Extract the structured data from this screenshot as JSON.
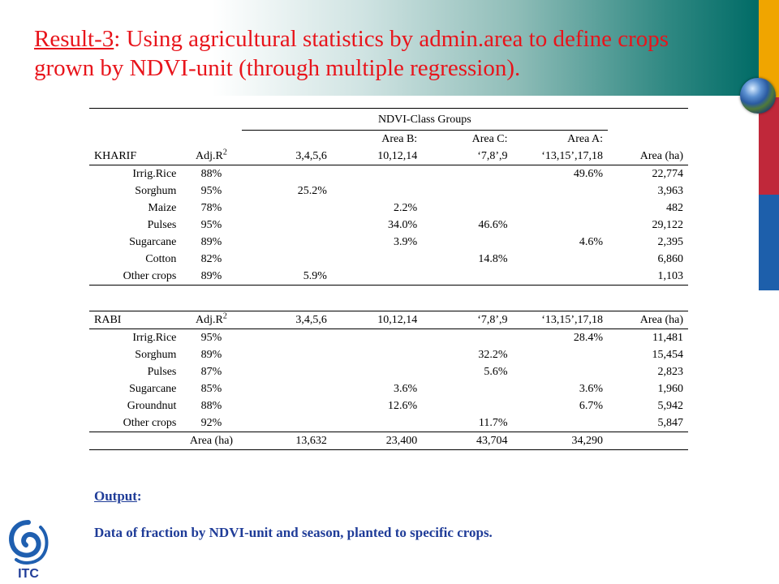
{
  "slide": {
    "title_prefix": "Result-3",
    "title_rest": ": Using agricultural statistics by admin.area to define crops grown by NDVI-unit (through multiple regression).",
    "colors": {
      "title": "#e8141b",
      "output_text": "#1f3c98",
      "accent_orange": "#f0a500",
      "accent_red": "#c0283a",
      "accent_blue": "#1d5fab",
      "header_teal": "#006b66"
    }
  },
  "table": {
    "group_header": "NDVI-Class Groups",
    "area_labels": [
      "Area B:",
      "Area C:",
      "Area A:"
    ],
    "kharif": {
      "season": "KHARIF",
      "adj_label": "Adj.R",
      "adj_sup": "2",
      "columns": [
        "3,4,5,6",
        "10,12,14",
        "‘7,8’,9",
        "‘13,15’,17,18",
        "Area (ha)"
      ],
      "rows": [
        {
          "crop": "Irrig.Rice",
          "adj": "88%",
          "v1": "",
          "v2": "",
          "v3": "",
          "v4": "49.6%",
          "area": "22,774"
        },
        {
          "crop": "Sorghum",
          "adj": "95%",
          "v1": "25.2%",
          "v2": "",
          "v3": "",
          "v4": "",
          "area": "3,963"
        },
        {
          "crop": "Maize",
          "adj": "78%",
          "v1": "",
          "v2": "2.2%",
          "v3": "",
          "v4": "",
          "area": "482"
        },
        {
          "crop": "Pulses",
          "adj": "95%",
          "v1": "",
          "v2": "34.0%",
          "v3": "46.6%",
          "v4": "",
          "area": "29,122"
        },
        {
          "crop": "Sugarcane",
          "adj": "89%",
          "v1": "",
          "v2": "3.9%",
          "v3": "",
          "v4": "4.6%",
          "area": "2,395"
        },
        {
          "crop": "Cotton",
          "adj": "82%",
          "v1": "",
          "v2": "",
          "v3": "14.8%",
          "v4": "",
          "area": "6,860"
        },
        {
          "crop": "Other crops",
          "adj": "89%",
          "v1": "5.9%",
          "v2": "",
          "v3": "",
          "v4": "",
          "area": "1,103"
        }
      ]
    },
    "rabi": {
      "season": "RABI",
      "adj_label": "Adj.R",
      "adj_sup": "2",
      "columns": [
        "3,4,5,6",
        "10,12,14",
        "‘7,8’,9",
        "‘13,15’,17,18",
        "Area (ha)"
      ],
      "rows": [
        {
          "crop": "Irrig.Rice",
          "adj": "95%",
          "v1": "",
          "v2": "",
          "v3": "",
          "v4": "28.4%",
          "area": "11,481"
        },
        {
          "crop": "Sorghum",
          "adj": "89%",
          "v1": "",
          "v2": "",
          "v3": "32.2%",
          "v4": "",
          "area": "15,454"
        },
        {
          "crop": "Pulses",
          "adj": "87%",
          "v1": "",
          "v2": "",
          "v3": "5.6%",
          "v4": "",
          "area": "2,823"
        },
        {
          "crop": "Sugarcane",
          "adj": "85%",
          "v1": "",
          "v2": "3.6%",
          "v3": "",
          "v4": "3.6%",
          "area": "1,960"
        },
        {
          "crop": "Groundnut",
          "adj": "88%",
          "v1": "",
          "v2": "12.6%",
          "v3": "",
          "v4": "6.7%",
          "area": "5,942"
        },
        {
          "crop": "Other crops",
          "adj": "92%",
          "v1": "",
          "v2": "",
          "v3": "11.7%",
          "v4": "",
          "area": "5,847"
        }
      ],
      "total": {
        "label": "Area (ha)",
        "v1": "13,632",
        "v2": "23,400",
        "v3": "43,704",
        "v4": "34,290"
      }
    }
  },
  "output": {
    "label": "Output",
    "colon": ":",
    "description": "Data of fraction by NDVI-unit and season, planted to specific crops."
  },
  "logo": {
    "text": "ITC",
    "icon": "itc-logo-icon"
  },
  "globe": {
    "icon": "globe-icon"
  }
}
